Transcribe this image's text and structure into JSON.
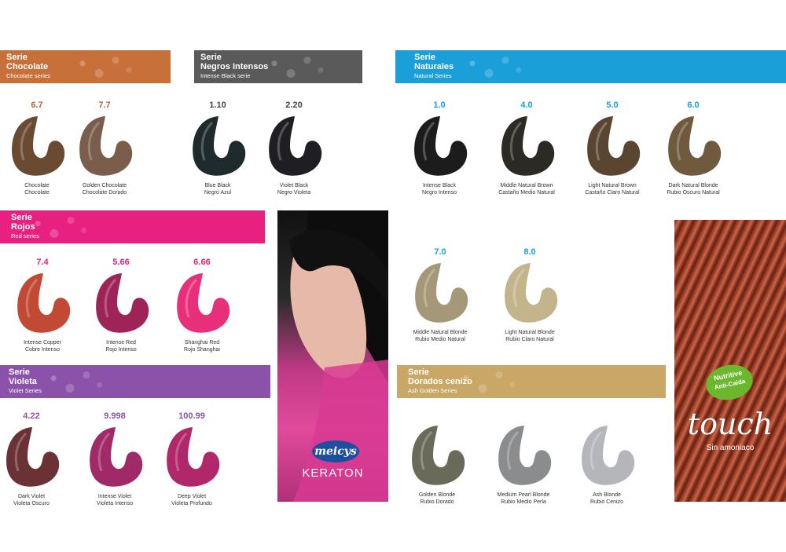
{
  "banners": {
    "chocolate": {
      "line1": "Serie",
      "line2": "Chocolate",
      "sub": "Chocolate series",
      "color": "#c8703a"
    },
    "negros": {
      "line1": "Serie",
      "line2": "Negros Intensos",
      "sub": "Intense Black serie",
      "color": "#5a5a5a"
    },
    "naturales": {
      "line1": "Serie",
      "line2": "Naturales",
      "sub": "Natural Series",
      "color": "#1a9fd9"
    },
    "rojos": {
      "line1": "Serie",
      "line2": "Rojos",
      "sub": "Red series",
      "color": "#e8207f"
    },
    "violeta": {
      "line1": "Serie",
      "line2": "Violeta",
      "sub": "Violet Series",
      "color": "#8a52a8"
    },
    "dorados": {
      "line1": "Serie",
      "line2": "Dorados cenizo",
      "sub": "Ash Golden Series",
      "color": "#c9a766"
    }
  },
  "swatches": [
    {
      "code": "6.7",
      "l1": "Chocolate",
      "l2": "Chocolate",
      "color": "#6b4a32",
      "codeColor": "#b5653a"
    },
    {
      "code": "7.7",
      "l1": "Golden Chocolate",
      "l2": "Chocolate Dorado",
      "color": "#7a5d4a",
      "codeColor": "#b5653a"
    },
    {
      "code": "1.10",
      "l1": "Blue Black",
      "l2": "Negro Azul",
      "color": "#1e2a2c",
      "codeColor": "#444444"
    },
    {
      "code": "2.20",
      "l1": "Violet Black",
      "l2": "Negro Violeta",
      "color": "#1f1e22",
      "codeColor": "#444444"
    },
    {
      "code": "1.0",
      "l1": "Intense Black",
      "l2": "Negro Intenso",
      "color": "#1c1c1c",
      "codeColor": "#1a9fd9"
    },
    {
      "code": "4.0",
      "l1": "Middle Natural Brown",
      "l2": "Castaño Medio Natural",
      "color": "#2c2a24",
      "codeColor": "#1a9fd9"
    },
    {
      "code": "5.0",
      "l1": "Light Natural Brown",
      "l2": "Castaño Claro Natural",
      "color": "#5a4630",
      "codeColor": "#1a9fd9"
    },
    {
      "code": "6.0",
      "l1": "Dark Natural Blonde",
      "l2": "Rubio Oscuro Natural",
      "color": "#6f5a3e",
      "codeColor": "#1a9fd9"
    },
    {
      "code": "7.4",
      "l1": "Intense Copper",
      "l2": "Cobre Intenso",
      "color": "#c24a34",
      "codeColor": "#e8207f"
    },
    {
      "code": "5.66",
      "l1": "Intense Red",
      "l2": "Rojo Intenso",
      "color": "#9e2458",
      "codeColor": "#e8207f"
    },
    {
      "code": "6.66",
      "l1": "Shanghai Red",
      "l2": "Rojo Shanghai",
      "color": "#e8307a",
      "codeColor": "#e8207f"
    },
    {
      "code": "7.0",
      "l1": "Middle Natural Blonde",
      "l2": "Rubio Medio Natural",
      "color": "#a59878",
      "codeColor": "#1a9fd9"
    },
    {
      "code": "8.0",
      "l1": "Light Natural Blonde",
      "l2": "Rubio Claro Natural",
      "color": "#c4b48c",
      "codeColor": "#1a9fd9"
    },
    {
      "code": "4.22",
      "l1": "Dark Violet",
      "l2": "Violeta Oscuro",
      "color": "#6a3234",
      "codeColor": "#8a52a8"
    },
    {
      "code": "9.998",
      "l1": "Intense Violet",
      "l2": "Violeta Intenso",
      "color": "#a02a68",
      "codeColor": "#8a52a8"
    },
    {
      "code": "100.99",
      "l1": "Deep Violet",
      "l2": "Violeta Profundo",
      "color": "#b0286a",
      "codeColor": "#8a52a8"
    },
    {
      "code": "",
      "l1": "Golden Blonde",
      "l2": "Rubio Dorado",
      "color": "#6a6a5a",
      "codeColor": "#c9a766"
    },
    {
      "code": "",
      "l1": "Medium Pearl Blonde",
      "l2": "Rubio Medio Perla",
      "color": "#8a8c8e",
      "codeColor": "#c9a766"
    },
    {
      "code": "",
      "l1": "Ash Blonde",
      "l2": "Rubio Cenizo",
      "color": "#b4b6ba",
      "codeColor": "#c9a766"
    }
  ],
  "keraton": {
    "brand": "meicys",
    "product": "KERATON"
  },
  "touch": {
    "badge1": "Nutritive",
    "badge2": "Anti-Caída",
    "title": "touch",
    "subtitle": "Sin amoniaco"
  }
}
